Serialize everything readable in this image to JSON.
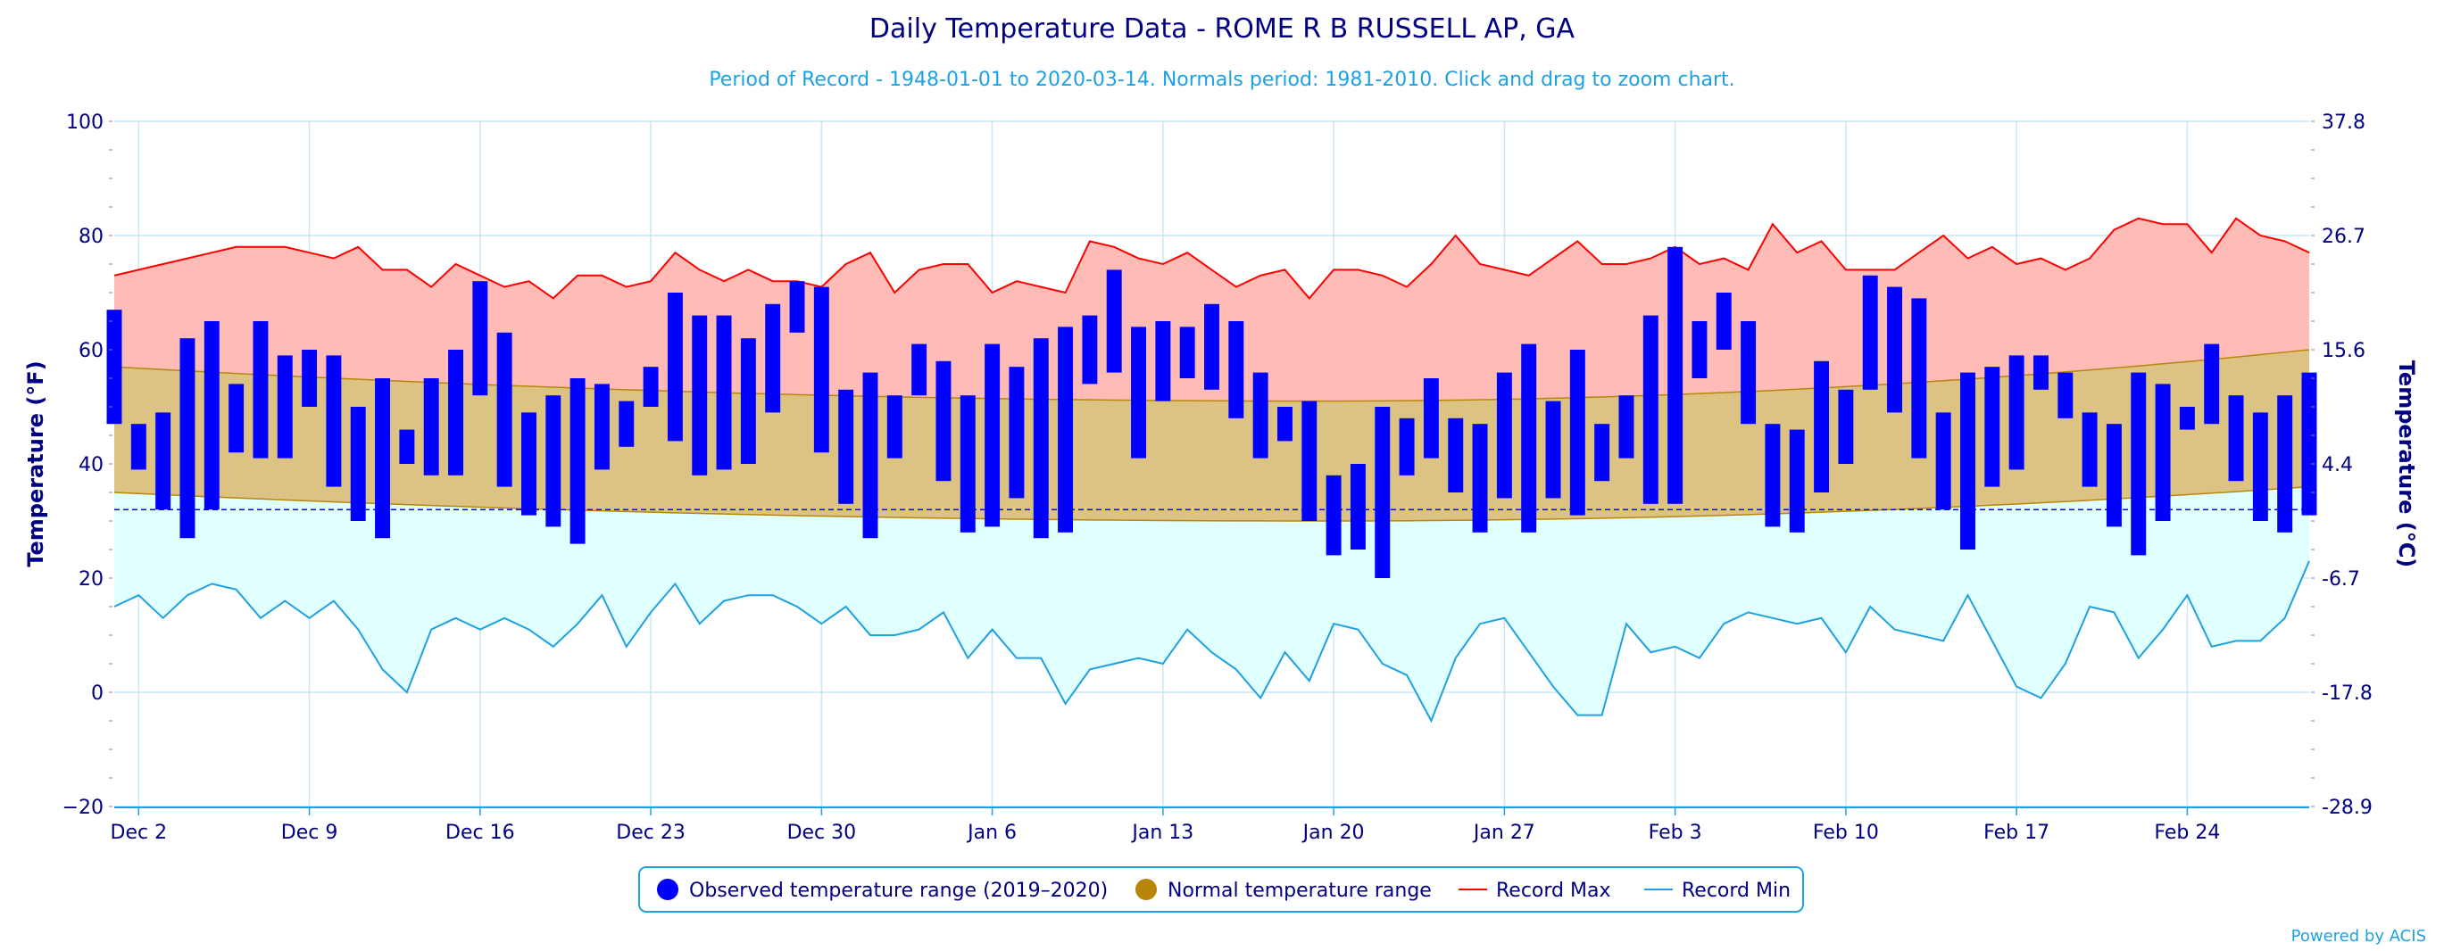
{
  "chart_data": {
    "type": "bar",
    "title": "Daily Temperature Data - ROME R B RUSSELL AP, GA",
    "subtitle": "Period of Record - 1948-01-01 to 2020-03-14. Normals period: 1981-2010. Click and drag to zoom chart.",
    "ylabel_left": "Temperature (°F)",
    "ylabel_right": "Temperature (°C)",
    "ylim": [
      -20,
      100
    ],
    "yticks_left": [
      "100",
      "80",
      "60",
      "40",
      "20",
      "0",
      "−20"
    ],
    "yticks_right": [
      "37.8",
      "26.7",
      "15.6",
      "4.4",
      "-6.7",
      "-17.8",
      "-28.9"
    ],
    "x_ticks": [
      {
        "label": "Dec 2",
        "day": 1
      },
      {
        "label": "Dec 9",
        "day": 8
      },
      {
        "label": "Dec 16",
        "day": 15
      },
      {
        "label": "Dec 23",
        "day": 22
      },
      {
        "label": "Dec 30",
        "day": 29
      },
      {
        "label": "Jan 6",
        "day": 36
      },
      {
        "label": "Jan 13",
        "day": 43
      },
      {
        "label": "Jan 20",
        "day": 50
      },
      {
        "label": "Jan 27",
        "day": 57
      },
      {
        "label": "Feb 3",
        "day": 64
      },
      {
        "label": "Feb 10",
        "day": 71
      },
      {
        "label": "Feb 17",
        "day": 78
      },
      {
        "label": "Feb 24",
        "day": 85
      }
    ],
    "freezing_line": 32,
    "x_start": "Dec 1",
    "x_end": "Feb 29",
    "series": [
      {
        "name": "Observed temperature range (2019-2020)",
        "color": "#0000ff",
        "low": [
          47,
          39,
          32,
          27,
          32,
          42,
          41,
          41,
          50,
          36,
          30,
          27,
          40,
          38,
          38,
          52,
          36,
          31,
          29,
          26,
          39,
          43,
          50,
          44,
          38,
          39,
          40,
          49,
          63,
          42,
          33,
          27,
          41,
          52,
          37,
          28,
          29,
          34,
          27,
          28,
          54,
          56,
          41,
          51,
          55,
          53,
          48,
          41,
          44,
          30,
          24,
          25,
          20,
          38,
          41,
          35,
          28,
          34,
          28,
          34,
          31,
          37,
          41,
          33,
          33,
          55,
          60,
          47,
          29,
          28,
          35,
          40,
          53,
          49,
          41,
          32,
          25,
          36,
          39,
          53,
          48,
          36,
          29,
          24,
          30,
          46,
          47,
          37,
          30,
          28,
          31
        ],
        "high": [
          67,
          47,
          49,
          62,
          65,
          54,
          65,
          59,
          60,
          59,
          50,
          55,
          46,
          55,
          60,
          72,
          63,
          49,
          52,
          55,
          54,
          51,
          57,
          70,
          66,
          66,
          62,
          68,
          72,
          71,
          53,
          56,
          52,
          61,
          58,
          52,
          61,
          57,
          62,
          64,
          66,
          74,
          64,
          65,
          64,
          68,
          65,
          56,
          50,
          51,
          38,
          40,
          50,
          48,
          55,
          48,
          47,
          56,
          61,
          51,
          60,
          47,
          52,
          66,
          78,
          65,
          70,
          65,
          47,
          46,
          58,
          53,
          73,
          71,
          69,
          49,
          56,
          57,
          59,
          59,
          56,
          49,
          47,
          56,
          54,
          50,
          61,
          52,
          49,
          52,
          56
        ]
      },
      {
        "name": "Normal temperature range",
        "color": "#b8860b",
        "normal_low_start": 35,
        "normal_low_mid": 30,
        "normal_low_end": 36,
        "normal_high_start": 57,
        "normal_high_mid": 51,
        "normal_high_end": 60
      },
      {
        "name": "Record Max",
        "color": "#ff0000",
        "values": [
          73,
          74,
          75,
          76,
          77,
          78,
          78,
          78,
          77,
          76,
          78,
          74,
          74,
          71,
          75,
          73,
          71,
          72,
          69,
          73,
          73,
          71,
          72,
          77,
          74,
          72,
          74,
          72,
          72,
          71,
          75,
          77,
          70,
          74,
          75,
          75,
          70,
          72,
          71,
          70,
          79,
          78,
          76,
          75,
          77,
          74,
          71,
          73,
          74,
          69,
          74,
          74,
          73,
          71,
          75,
          80,
          75,
          74,
          73,
          76,
          79,
          75,
          75,
          76,
          78,
          75,
          76,
          74,
          82,
          77,
          79,
          74,
          74,
          74,
          77,
          80,
          76,
          78,
          75,
          76,
          74,
          76,
          81,
          83,
          82,
          82,
          77,
          83,
          80,
          79,
          77
        ]
      },
      {
        "name": "Record Min",
        "color": "#1ea1e0",
        "values": [
          15,
          17,
          13,
          17,
          19,
          18,
          13,
          16,
          13,
          16,
          11,
          4,
          0,
          11,
          13,
          11,
          13,
          11,
          8,
          12,
          17,
          8,
          14,
          19,
          12,
          16,
          17,
          17,
          15,
          12,
          15,
          10,
          10,
          11,
          14,
          6,
          11,
          6,
          6,
          -2,
          4,
          5,
          6,
          5,
          11,
          7,
          4,
          -1,
          7,
          2,
          12,
          11,
          5,
          3,
          -5,
          6,
          12,
          13,
          7,
          1,
          -4,
          -4,
          12,
          7,
          8,
          6,
          12,
          14,
          13,
          12,
          13,
          7,
          15,
          11,
          10,
          9,
          17,
          9,
          1,
          -1,
          5,
          15,
          14,
          6,
          11,
          17,
          8,
          9,
          9,
          13,
          23
        ]
      }
    ]
  },
  "legend": {
    "items": [
      {
        "label": "Observed temperature range (2019–2020)",
        "color": "#0000ff",
        "kind": "circle"
      },
      {
        "label": "Normal temperature range",
        "color": "#b8860b",
        "kind": "circle"
      },
      {
        "label": "Record Max",
        "color": "#ff0000",
        "kind": "line"
      },
      {
        "label": "Record Min",
        "color": "#1ea1e0",
        "kind": "line"
      }
    ]
  },
  "credit": "Powered by ACIS"
}
